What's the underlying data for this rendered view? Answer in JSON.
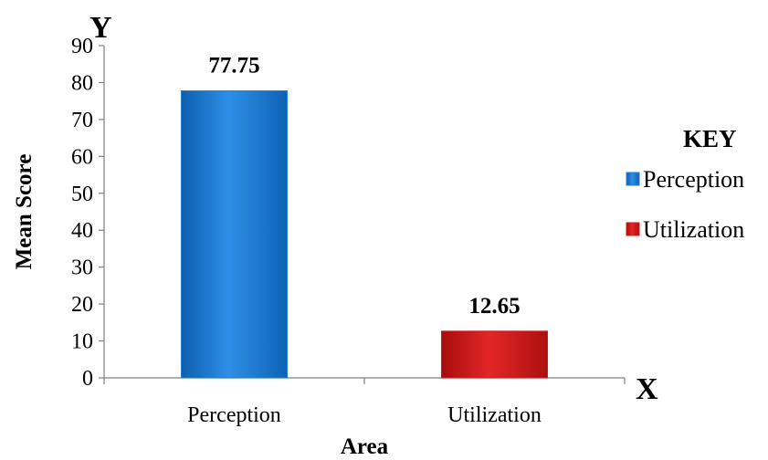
{
  "chart_data": {
    "type": "bar",
    "categories": [
      "Perception",
      "Utilization"
    ],
    "values": [
      77.75,
      12.65
    ],
    "data_labels": [
      "77.75",
      "12.65"
    ],
    "colors": [
      "#1f7fd6",
      "#d01818"
    ],
    "xlabel": "Area",
    "ylabel": "Mean Score",
    "x_axis_letter": "X",
    "y_axis_letter": "Y",
    "ylim": [
      0,
      90
    ],
    "yticks": [
      "0",
      "10",
      "20",
      "30",
      "40",
      "50",
      "60",
      "70",
      "80",
      "90"
    ],
    "grid": false,
    "legend": {
      "title": "KEY",
      "placement": "right",
      "entries": [
        "Perception",
        "Utilization"
      ]
    }
  }
}
